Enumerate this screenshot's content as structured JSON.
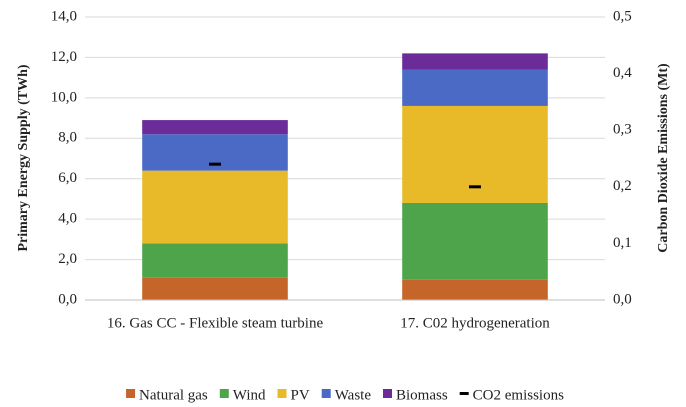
{
  "chart_data": {
    "type": "bar",
    "stacked": true,
    "y_label": "Primary Energy Supply (TWh)",
    "y2_label": "Carbon Dioxide Emissions (Mt)",
    "categories": [
      "16. Gas CC - Flexible steam turbine",
      "17. C02 hydrogeneration"
    ],
    "series": [
      {
        "name": "Natural gas",
        "color": "#c5652a",
        "values": [
          1.1,
          1.0
        ]
      },
      {
        "name": "Wind",
        "color": "#4ea44a",
        "values": [
          1.7,
          3.8
        ]
      },
      {
        "name": "PV",
        "color": "#e8ba2a",
        "values": [
          3.6,
          4.8
        ]
      },
      {
        "name": "Waste",
        "color": "#4a6ac6",
        "values": [
          1.8,
          1.8
        ]
      },
      {
        "name": "Biomass",
        "color": "#6b2b98",
        "values": [
          0.7,
          0.8
        ]
      },
      {
        "name": "CO2 emissions",
        "color": "#000000",
        "axis": "y2",
        "values": [
          0.24,
          0.2
        ]
      }
    ],
    "ylim": [
      0,
      14
    ],
    "yticks": [
      {
        "value": 0,
        "label": "0,0"
      },
      {
        "value": 2,
        "label": "2,0"
      },
      {
        "value": 4,
        "label": "4,0"
      },
      {
        "value": 6,
        "label": "6,0"
      },
      {
        "value": 8,
        "label": "8,0"
      },
      {
        "value": 10,
        "label": "10,0"
      },
      {
        "value": 12,
        "label": "12,0"
      },
      {
        "value": 14,
        "label": "14,0"
      }
    ],
    "y2lim": [
      0,
      0.5
    ],
    "y2ticks": [
      {
        "value": 0,
        "label": "0,0"
      },
      {
        "value": 0.1,
        "label": "0,1"
      },
      {
        "value": 0.2,
        "label": "0,2"
      },
      {
        "value": 0.3,
        "label": "0,3"
      },
      {
        "value": 0.4,
        "label": "0,4"
      },
      {
        "value": 0.5,
        "label": "0,5"
      }
    ],
    "grid": true,
    "legend": "bottom"
  }
}
